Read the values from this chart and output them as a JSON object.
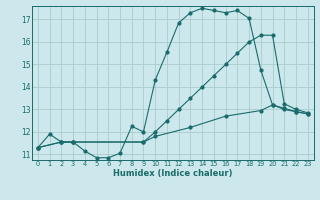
{
  "xlabel": "Humidex (Indice chaleur)",
  "bg_color": "#cce8ec",
  "grid_color": "#aacccc",
  "line_color": "#1a6b6b",
  "xlim": [
    -0.5,
    23.5
  ],
  "ylim": [
    10.75,
    17.6
  ],
  "xticks": [
    0,
    1,
    2,
    3,
    4,
    5,
    6,
    7,
    8,
    9,
    10,
    11,
    12,
    13,
    14,
    15,
    16,
    17,
    18,
    19,
    20,
    21,
    22,
    23
  ],
  "yticks": [
    11,
    12,
    13,
    14,
    15,
    16,
    17
  ],
  "line1_x": [
    0,
    1,
    2,
    3,
    4,
    5,
    6,
    7,
    8,
    9,
    10,
    11,
    12,
    13,
    14,
    15,
    16,
    17,
    18,
    19,
    20,
    21,
    22,
    23
  ],
  "line1_y": [
    11.3,
    11.9,
    11.55,
    11.55,
    11.15,
    10.85,
    10.85,
    11.05,
    12.25,
    12.0,
    14.3,
    15.55,
    16.85,
    17.3,
    17.5,
    17.4,
    17.3,
    17.4,
    17.05,
    14.75,
    13.2,
    13.0,
    12.9,
    12.8
  ],
  "line2_x": [
    0,
    2,
    3,
    9,
    10,
    11,
    12,
    13,
    14,
    15,
    16,
    17,
    18,
    19,
    20,
    21,
    22,
    23
  ],
  "line2_y": [
    11.3,
    11.55,
    11.55,
    11.55,
    12.0,
    12.5,
    13.0,
    13.5,
    14.0,
    14.5,
    15.0,
    15.5,
    16.0,
    16.3,
    16.3,
    13.25,
    13.0,
    12.85
  ],
  "line3_x": [
    0,
    2,
    3,
    9,
    10,
    13,
    16,
    19,
    20,
    21,
    22,
    23
  ],
  "line3_y": [
    11.3,
    11.55,
    11.55,
    11.55,
    11.8,
    12.2,
    12.7,
    12.95,
    13.2,
    13.05,
    12.9,
    12.8
  ]
}
